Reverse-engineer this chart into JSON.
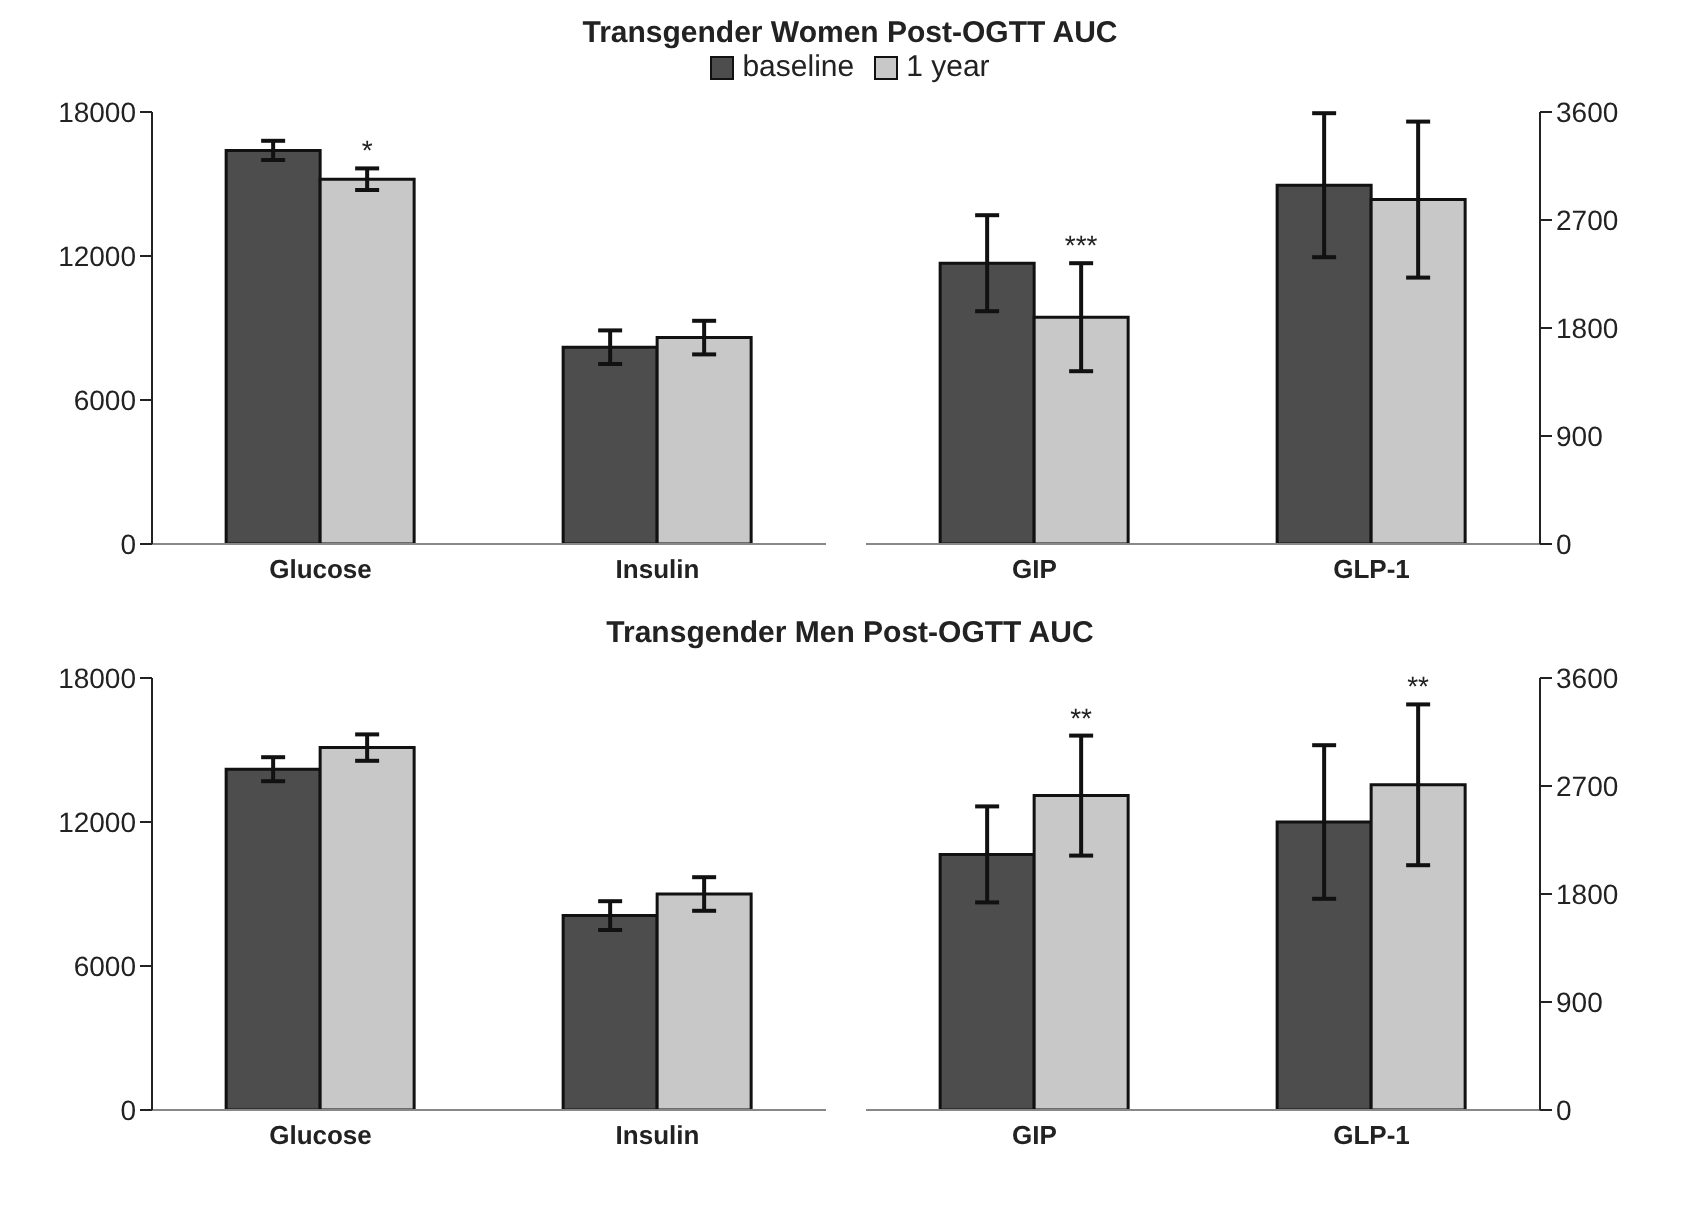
{
  "chart_data": [
    {
      "type": "bar",
      "title": "Transgender Women Post-OGTT AUC",
      "categories": [
        "Glucose",
        "Insulin"
      ],
      "legend": "top",
      "ylim": [
        0,
        18000
      ],
      "yticks": [
        0,
        6000,
        12000,
        18000
      ],
      "series": [
        {
          "name": "baseline",
          "color": "#4d4d4d",
          "values": [
            16400,
            8200
          ],
          "errors": [
            400,
            700
          ]
        },
        {
          "name": "1 year",
          "color": "#c8c8c8",
          "values": [
            15200,
            8600
          ],
          "errors": [
            450,
            700
          ],
          "value_labels": [
            "*",
            null
          ]
        }
      ]
    },
    {
      "type": "bar",
      "categories": [
        "GIP",
        "GLP-1"
      ],
      "y2lim": [
        0,
        3600
      ],
      "y2ticks": [
        0,
        900,
        1800,
        2700,
        3600
      ],
      "series": [
        {
          "color": "#4d4d4d",
          "values": [
            2340,
            2990
          ],
          "errors": [
            400,
            600
          ],
          "axis": "y2"
        },
        {
          "color": "#c8c8c8",
          "values": [
            1890,
            2870
          ],
          "errors": [
            450,
            650
          ],
          "axis": "y2",
          "value_labels": [
            "***",
            null
          ]
        }
      ]
    },
    {
      "type": "bar",
      "title": "Transgender Men Post-OGTT AUC",
      "categories": [
        "Glucose",
        "Insulin"
      ],
      "ylim": [
        0,
        18000
      ],
      "yticks": [
        0,
        6000,
        12000,
        18000
      ],
      "series": [
        {
          "color": "#4d4d4d",
          "values": [
            14200,
            8100
          ],
          "errors": [
            500,
            600
          ]
        },
        {
          "color": "#c8c8c8",
          "values": [
            15100,
            9000
          ],
          "errors": [
            550,
            700
          ]
        }
      ]
    },
    {
      "type": "bar",
      "categories": [
        "GIP",
        "GLP-1"
      ],
      "y2lim": [
        0,
        3600
      ],
      "y2ticks": [
        0,
        900,
        1800,
        2700,
        3600
      ],
      "series": [
        {
          "color": "#4d4d4d",
          "values": [
            2130,
            2400
          ],
          "errors": [
            400,
            640
          ],
          "axis": "y2"
        },
        {
          "color": "#c8c8c8",
          "values": [
            2620,
            2710
          ],
          "errors": [
            500,
            670
          ],
          "axis": "y2",
          "value_labels": [
            "**",
            "**"
          ]
        }
      ]
    }
  ]
}
